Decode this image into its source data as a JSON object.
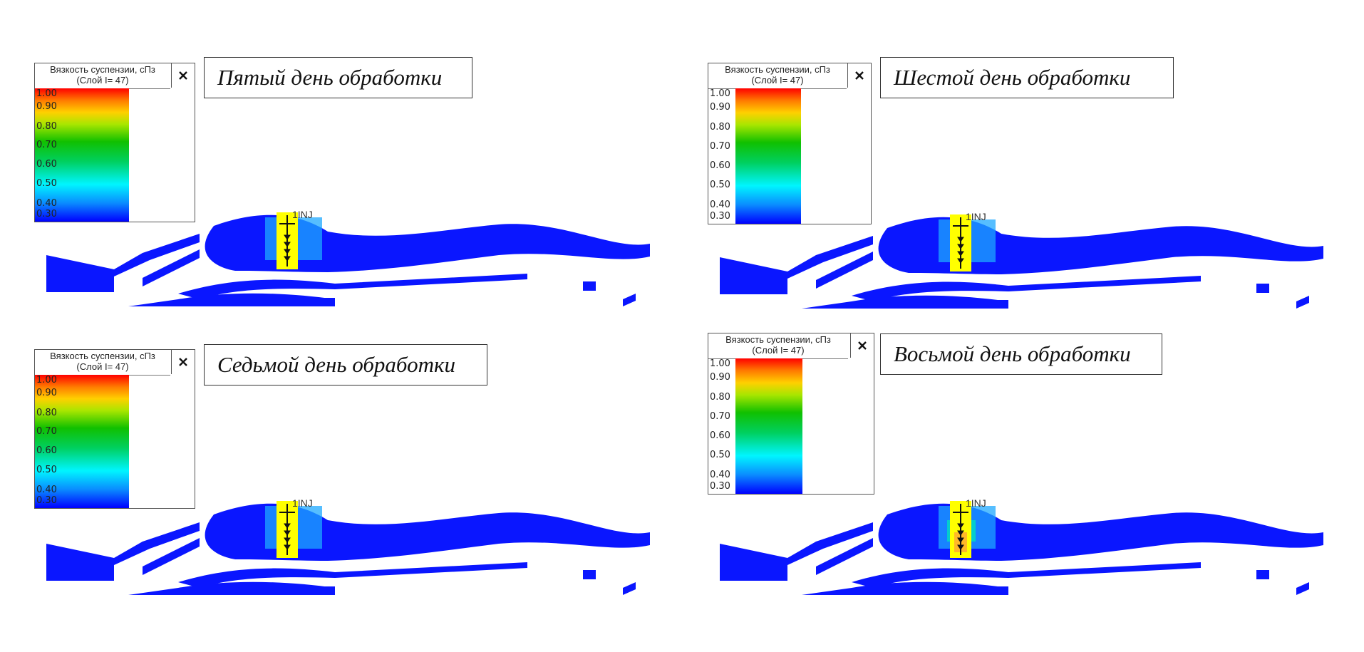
{
  "legend": {
    "title_line1": "Вязкость суспензии, сПз",
    "title_line2": "(Слой I= 47)",
    "ticks": [
      "1.00",
      "0.90",
      "0.80",
      "0.70",
      "0.60",
      "0.50",
      "0.40",
      "0.30"
    ],
    "scale_colors": [
      "#ff0000",
      "#ffd000",
      "#10c000",
      "#00f5ff",
      "#0000ff"
    ]
  },
  "panels": [
    {
      "title": "Пятый день обработки",
      "well": "1INJ"
    },
    {
      "title": "Шестой день обработки",
      "well": "1INJ"
    },
    {
      "title": "Седьмой день обработки",
      "well": "1INJ"
    },
    {
      "title": "Восьмой день обработки",
      "well": "1INJ"
    }
  ],
  "colors": {
    "reservoir": "#0a16ff",
    "well_highlight": "#ffff00"
  }
}
